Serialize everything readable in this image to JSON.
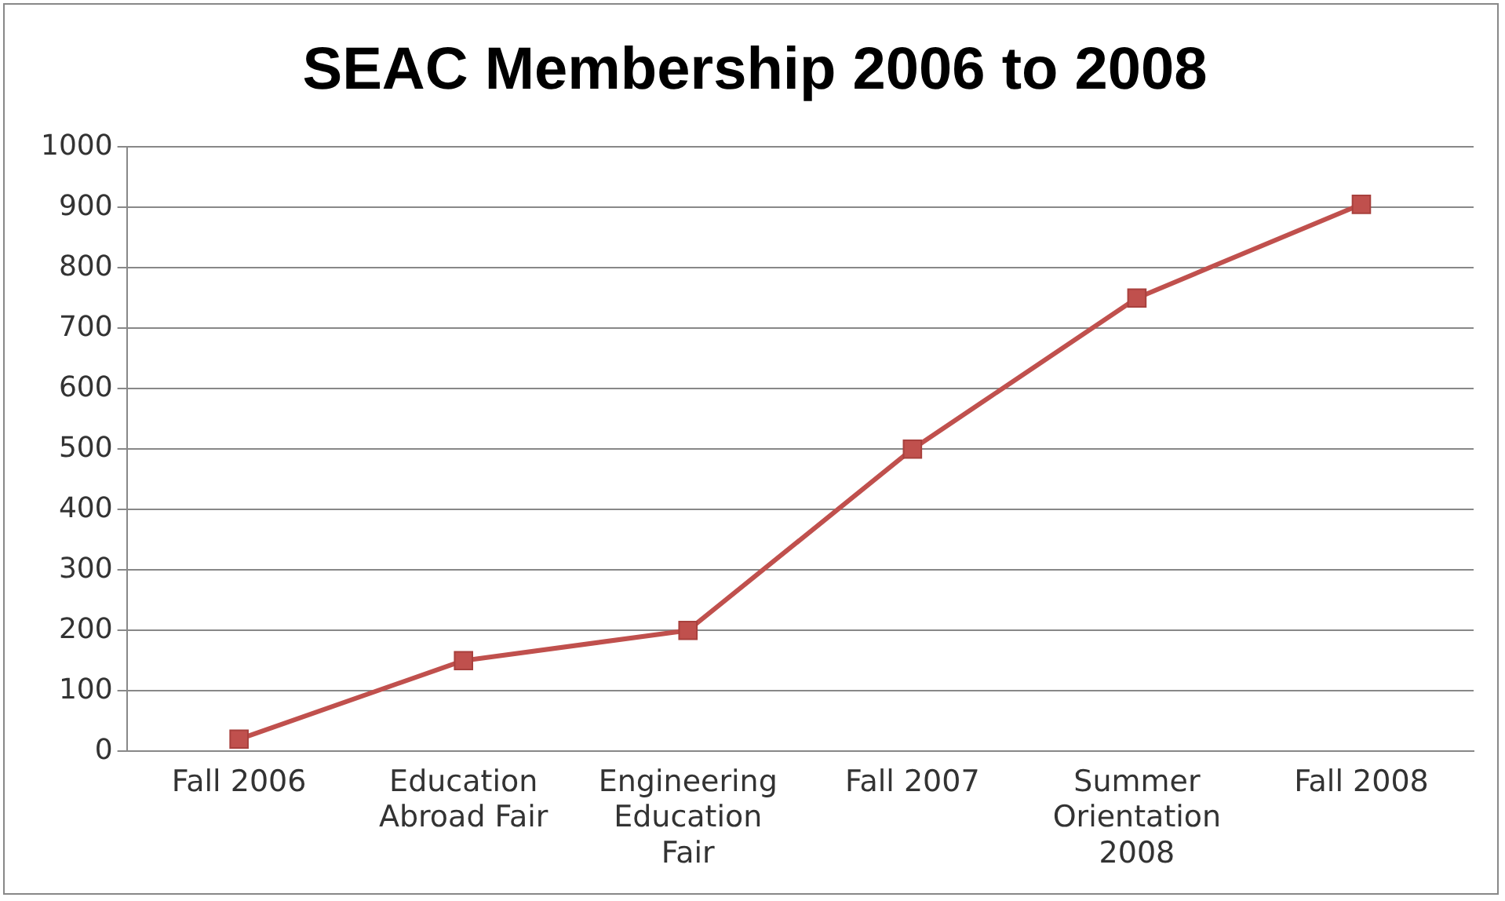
{
  "chart_data": {
    "type": "line",
    "title": "SEAC Membership 2006 to 2008",
    "categories": [
      "Fall 2006",
      "Education Abroad Fair",
      "Engineering Education Fair",
      "Fall 2007",
      "Summer Orientation 2008",
      "Fall 2008"
    ],
    "series": [
      {
        "color": "#c0504d",
        "values": [
          20,
          150,
          200,
          500,
          750,
          905
        ]
      }
    ],
    "ylim": [
      0,
      1000
    ],
    "yticks": [
      0,
      100,
      200,
      300,
      400,
      500,
      600,
      700,
      800,
      900,
      1000
    ],
    "grid": "y",
    "legend": false,
    "marker": "square",
    "line_style": "solid"
  }
}
